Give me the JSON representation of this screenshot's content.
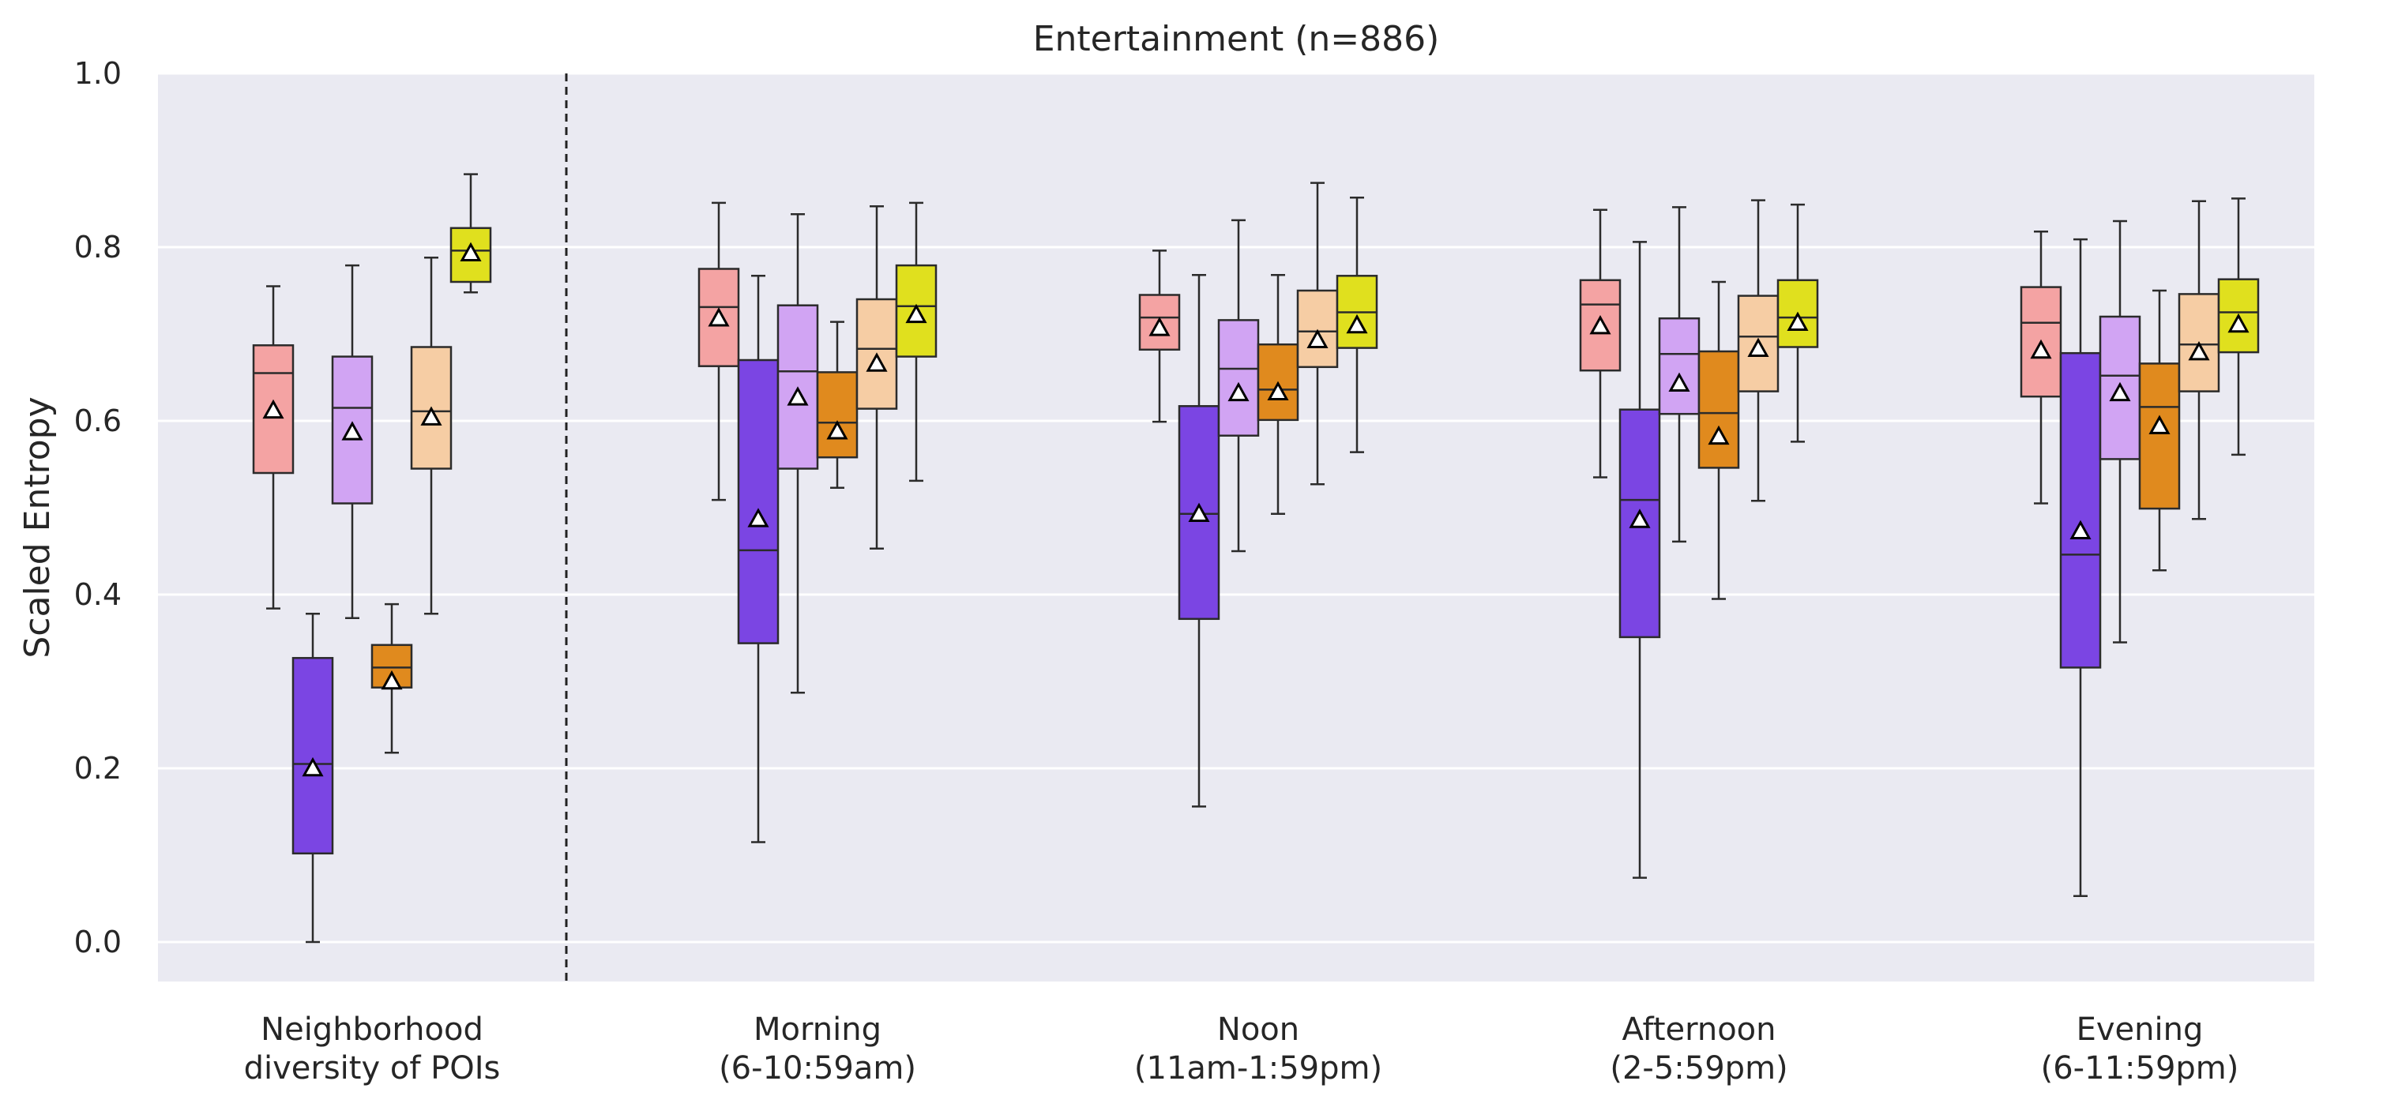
{
  "chart_data": {
    "type": "box",
    "title": "Entertainment (n=886)",
    "xlabel": "",
    "ylabel": "Scaled Entropy",
    "ylim": [
      -0.045,
      1.0
    ],
    "yticks": [
      "0.0",
      "0.2",
      "0.4",
      "0.6",
      "0.8",
      "1.0"
    ],
    "grid": true,
    "legend": "none",
    "mean_marker": "white triangle",
    "separator_after_category": 0,
    "colors": [
      "#f4a3a3",
      "#7b45e3",
      "#d1a4f3",
      "#e08a1e",
      "#f6cda4",
      "#e0e01e"
    ],
    "categories": [
      {
        "line1": "Neighborhood",
        "line2": "diversity of POIs"
      },
      {
        "line1": "Morning",
        "line2": "(6-10:59am)"
      },
      {
        "line1": "Noon",
        "line2": "(11am-1:59pm)"
      },
      {
        "line1": "Afternoon",
        "line2": "(2-5:59pm)"
      },
      {
        "line1": "Evening",
        "line2": "(6-11:59pm)"
      }
    ],
    "groups": [
      {
        "category": 0,
        "boxes": [
          {
            "color": 0,
            "whislo": 0.384,
            "q1": 0.54,
            "median": 0.655,
            "q3": 0.687,
            "whishi": 0.755,
            "mean": 0.612
          },
          {
            "color": 1,
            "whislo": 0.0,
            "q1": 0.102,
            "median": 0.205,
            "q3": 0.327,
            "whishi": 0.378,
            "mean": 0.2
          },
          {
            "color": 2,
            "whislo": 0.373,
            "q1": 0.505,
            "median": 0.615,
            "q3": 0.674,
            "whishi": 0.779,
            "mean": 0.587
          },
          {
            "color": 3,
            "whislo": 0.218,
            "q1": 0.293,
            "median": 0.316,
            "q3": 0.342,
            "whishi": 0.389,
            "mean": 0.3
          },
          {
            "color": 4,
            "whislo": 0.378,
            "q1": 0.545,
            "median": 0.611,
            "q3": 0.685,
            "whishi": 0.788,
            "mean": 0.604
          },
          {
            "color": 5,
            "whislo": 0.748,
            "q1": 0.76,
            "median": 0.796,
            "q3": 0.822,
            "whishi": 0.884,
            "mean": 0.793
          }
        ]
      },
      {
        "category": 1,
        "boxes": [
          {
            "color": 0,
            "whislo": 0.509,
            "q1": 0.663,
            "median": 0.731,
            "q3": 0.775,
            "whishi": 0.851,
            "mean": 0.718
          },
          {
            "color": 1,
            "whislo": 0.115,
            "q1": 0.344,
            "median": 0.451,
            "q3": 0.67,
            "whishi": 0.767,
            "mean": 0.487
          },
          {
            "color": 2,
            "whislo": 0.287,
            "q1": 0.545,
            "median": 0.657,
            "q3": 0.733,
            "whishi": 0.838,
            "mean": 0.627
          },
          {
            "color": 3,
            "whislo": 0.523,
            "q1": 0.558,
            "median": 0.598,
            "q3": 0.656,
            "whishi": 0.714,
            "mean": 0.588
          },
          {
            "color": 4,
            "whislo": 0.453,
            "q1": 0.614,
            "median": 0.683,
            "q3": 0.74,
            "whishi": 0.847,
            "mean": 0.666
          },
          {
            "color": 5,
            "whislo": 0.531,
            "q1": 0.674,
            "median": 0.732,
            "q3": 0.779,
            "whishi": 0.851,
            "mean": 0.722
          }
        ]
      },
      {
        "category": 2,
        "boxes": [
          {
            "color": 0,
            "whislo": 0.599,
            "q1": 0.682,
            "median": 0.719,
            "q3": 0.745,
            "whishi": 0.796,
            "mean": 0.707
          },
          {
            "color": 1,
            "whislo": 0.156,
            "q1": 0.372,
            "median": 0.493,
            "q3": 0.617,
            "whishi": 0.768,
            "mean": 0.493
          },
          {
            "color": 2,
            "whislo": 0.45,
            "q1": 0.583,
            "median": 0.66,
            "q3": 0.716,
            "whishi": 0.831,
            "mean": 0.632
          },
          {
            "color": 3,
            "whislo": 0.493,
            "q1": 0.601,
            "median": 0.636,
            "q3": 0.688,
            "whishi": 0.768,
            "mean": 0.633
          },
          {
            "color": 4,
            "whislo": 0.527,
            "q1": 0.662,
            "median": 0.703,
            "q3": 0.75,
            "whishi": 0.874,
            "mean": 0.693
          },
          {
            "color": 5,
            "whislo": 0.564,
            "q1": 0.684,
            "median": 0.725,
            "q3": 0.767,
            "whishi": 0.857,
            "mean": 0.71
          }
        ]
      },
      {
        "category": 3,
        "boxes": [
          {
            "color": 0,
            "whislo": 0.535,
            "q1": 0.658,
            "median": 0.734,
            "q3": 0.762,
            "whishi": 0.843,
            "mean": 0.709
          },
          {
            "color": 1,
            "whislo": 0.074,
            "q1": 0.351,
            "median": 0.509,
            "q3": 0.613,
            "whishi": 0.806,
            "mean": 0.486
          },
          {
            "color": 2,
            "whislo": 0.461,
            "q1": 0.608,
            "median": 0.677,
            "q3": 0.718,
            "whishi": 0.846,
            "mean": 0.643
          },
          {
            "color": 3,
            "whislo": 0.395,
            "q1": 0.546,
            "median": 0.609,
            "q3": 0.68,
            "whishi": 0.76,
            "mean": 0.582
          },
          {
            "color": 4,
            "whislo": 0.508,
            "q1": 0.634,
            "median": 0.697,
            "q3": 0.744,
            "whishi": 0.854,
            "mean": 0.683
          },
          {
            "color": 5,
            "whislo": 0.576,
            "q1": 0.685,
            "median": 0.719,
            "q3": 0.762,
            "whishi": 0.849,
            "mean": 0.713
          }
        ]
      },
      {
        "category": 4,
        "boxes": [
          {
            "color": 0,
            "whislo": 0.505,
            "q1": 0.628,
            "median": 0.713,
            "q3": 0.754,
            "whishi": 0.818,
            "mean": 0.681
          },
          {
            "color": 1,
            "whislo": 0.053,
            "q1": 0.316,
            "median": 0.446,
            "q3": 0.678,
            "whishi": 0.809,
            "mean": 0.473
          },
          {
            "color": 2,
            "whislo": 0.345,
            "q1": 0.556,
            "median": 0.652,
            "q3": 0.72,
            "whishi": 0.83,
            "mean": 0.632
          },
          {
            "color": 3,
            "whislo": 0.428,
            "q1": 0.499,
            "median": 0.616,
            "q3": 0.666,
            "whishi": 0.75,
            "mean": 0.594
          },
          {
            "color": 4,
            "whislo": 0.487,
            "q1": 0.634,
            "median": 0.688,
            "q3": 0.746,
            "whishi": 0.853,
            "mean": 0.679
          },
          {
            "color": 5,
            "whislo": 0.561,
            "q1": 0.679,
            "median": 0.725,
            "q3": 0.763,
            "whishi": 0.856,
            "mean": 0.711
          }
        ]
      }
    ]
  }
}
